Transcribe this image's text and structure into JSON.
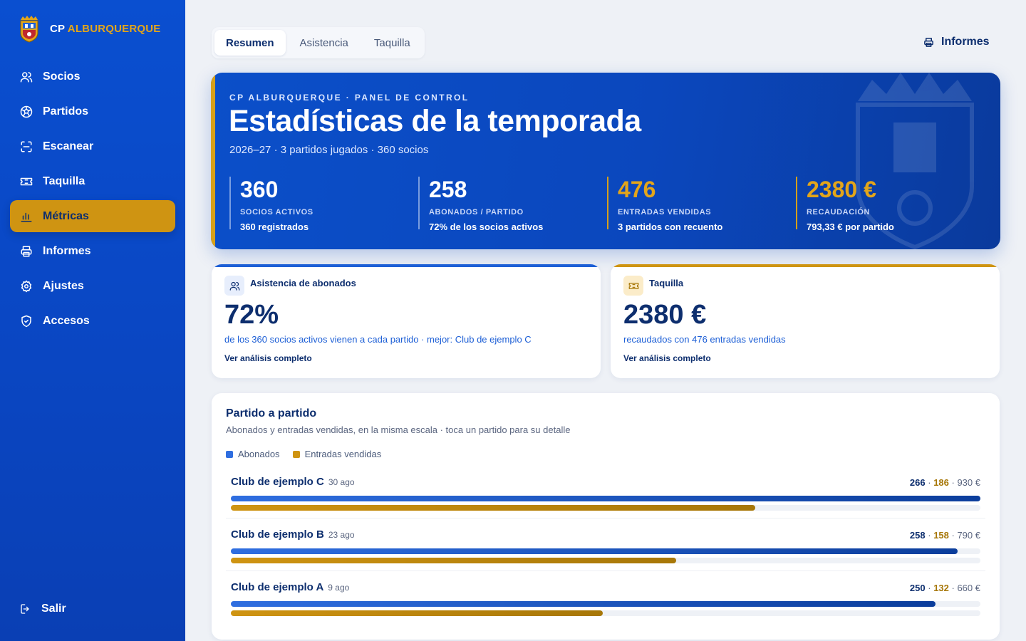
{
  "brand": {
    "prefix": "CP",
    "name": "ALBURQUERQUE"
  },
  "nav": [
    {
      "label": "Socios",
      "icon": "users-icon",
      "active": false
    },
    {
      "label": "Partidos",
      "icon": "soccer-ball-icon",
      "active": false
    },
    {
      "label": "Escanear",
      "icon": "scan-icon",
      "active": false
    },
    {
      "label": "Taquilla",
      "icon": "ticket-icon",
      "active": false
    },
    {
      "label": "Métricas",
      "icon": "bar-chart-icon",
      "active": true
    },
    {
      "label": "Informes",
      "icon": "printer-icon",
      "active": false
    },
    {
      "label": "Ajustes",
      "icon": "gear-icon",
      "active": false
    },
    {
      "label": "Accesos",
      "icon": "shield-icon",
      "active": false
    }
  ],
  "logout": {
    "label": "Salir",
    "icon": "logout-icon"
  },
  "tabs": [
    {
      "label": "Resumen",
      "active": true
    },
    {
      "label": "Asistencia",
      "active": false
    },
    {
      "label": "Taquilla",
      "active": false
    }
  ],
  "reports_button": {
    "label": "Informes",
    "icon": "printer-icon"
  },
  "hero": {
    "kicker": "CP ALBURQUERQUE · PANEL DE CONTROL",
    "title": "Estadísticas de la temporada",
    "subtitle": "2026–27 · 3 partidos jugados · 360 socios",
    "stats": [
      {
        "value": "360",
        "label": "SOCIOS ACTIVOS",
        "note": "360 registrados",
        "accent": "white"
      },
      {
        "value": "258",
        "label": "ABONADOS / PARTIDO",
        "note": "72% de los socios activos",
        "accent": "white"
      },
      {
        "value": "476",
        "label": "ENTRADAS VENDIDAS",
        "note": "3 partidos con recuento",
        "accent": "gold"
      },
      {
        "value": "2380 €",
        "label": "RECAUDACIÓN",
        "note": "793,33 € por partido",
        "accent": "gold"
      }
    ]
  },
  "cards": {
    "attendance": {
      "title": "Asistencia de abonados",
      "value": "72%",
      "description": "de los 360 socios activos vienen a cada partido · mejor: Club de ejemplo C",
      "link": "Ver análisis completo",
      "icon": "users-icon"
    },
    "box_office": {
      "title": "Taquilla",
      "value": "2380 €",
      "description": "recaudados con 476 entradas vendidas",
      "link": "Ver análisis completo",
      "icon": "ticket-icon"
    }
  },
  "matches_panel": {
    "title": "Partido a partido",
    "subtitle": "Abonados y entradas vendidas, en la misma escala · toca un partido para su detalle",
    "legend": [
      {
        "label": "Abonados",
        "color": "#2f6ee0"
      },
      {
        "label": "Entradas vendidas",
        "color": "#cf9412"
      }
    ],
    "scale_max": 266,
    "rows": [
      {
        "name": "Club de ejemplo C",
        "date": "30 ago",
        "abonados": 266,
        "entradas": 186,
        "recaudacion": "930 €"
      },
      {
        "name": "Club de ejemplo B",
        "date": "23 ago",
        "abonados": 258,
        "entradas": 158,
        "recaudacion": "790 €"
      },
      {
        "name": "Club de ejemplo A",
        "date": "9 ago",
        "abonados": 250,
        "entradas": 132,
        "recaudacion": "660 €"
      }
    ]
  },
  "colors": {
    "primary": "#0b4fc9",
    "accent": "#cf9412",
    "navy": "#0d2e6e"
  }
}
